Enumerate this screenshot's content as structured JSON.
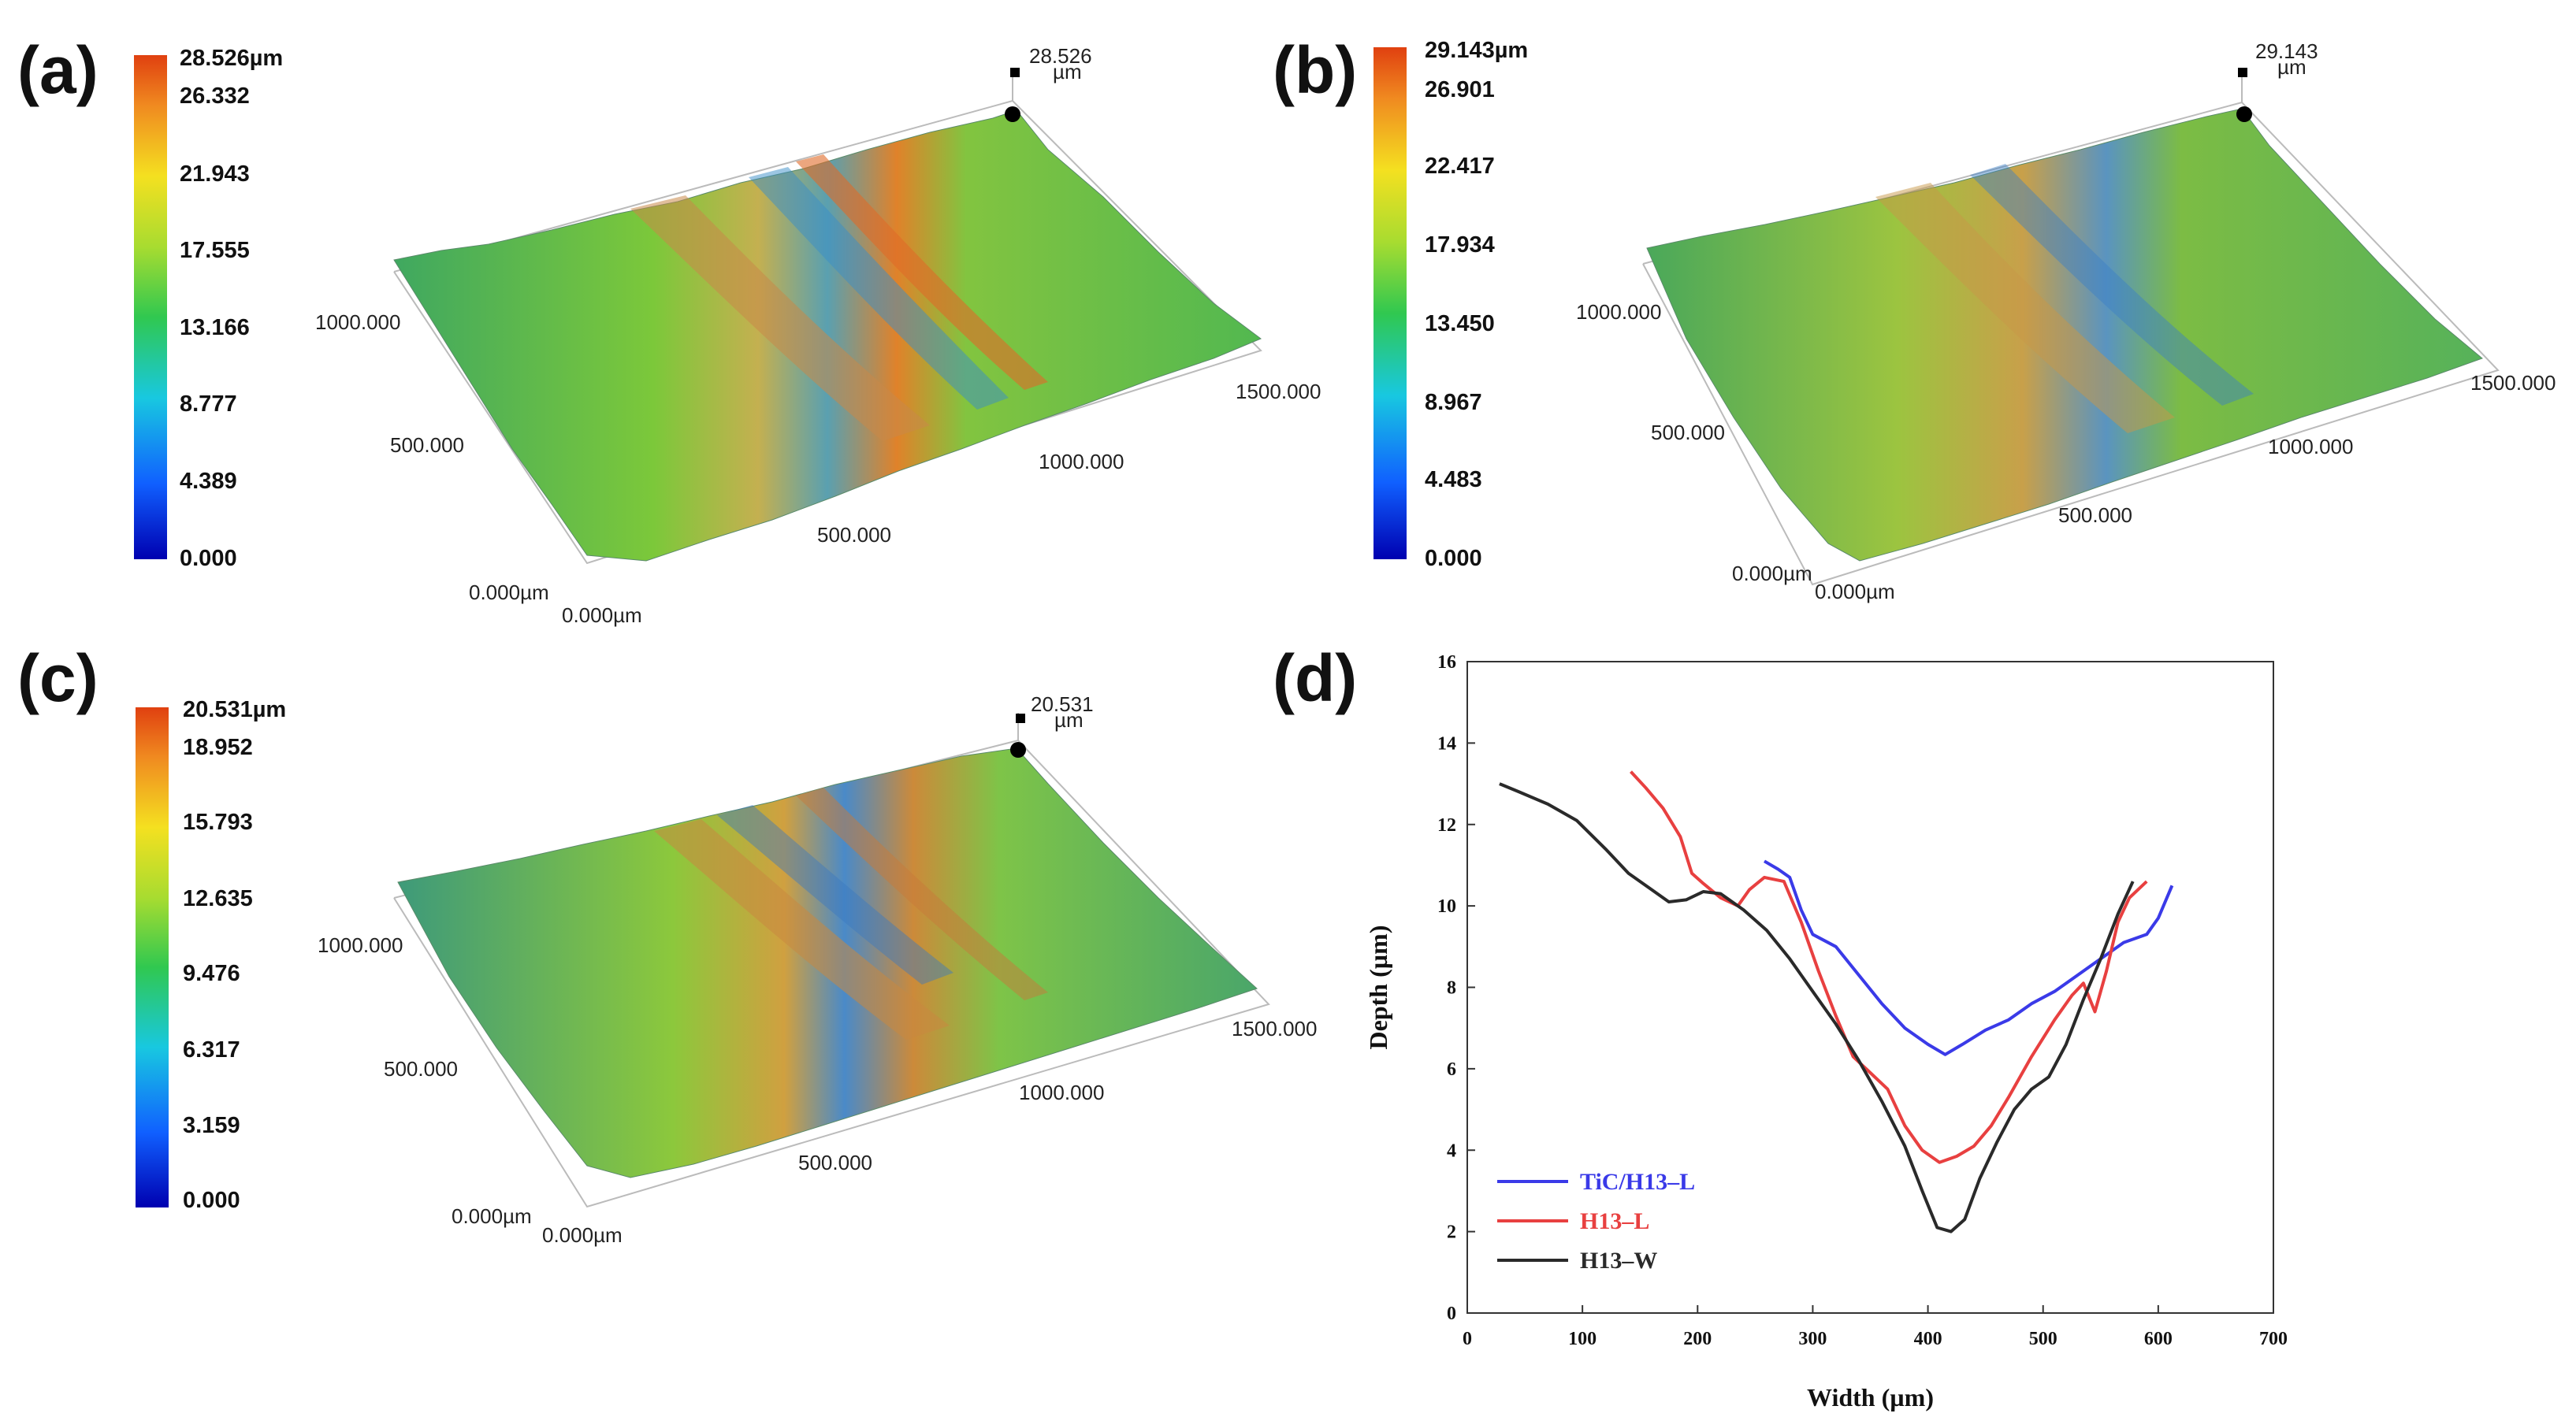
{
  "panels": {
    "a": {
      "label": "(a)",
      "colorbar": [
        "28.526µm",
        "26.332",
        "21.943",
        "17.555",
        "13.166",
        "8.777",
        "4.389",
        "0.000"
      ],
      "corner": {
        "value": "28.526",
        "unit": "µm"
      },
      "axes": {
        "y_top": "1000.000",
        "y_mid": "500.000",
        "origin_y": "0.000µm",
        "origin_x": "0.000µm",
        "x_mid": "500.000",
        "x_1000": "1000.000",
        "x_end": "1500.000"
      }
    },
    "b": {
      "label": "(b)",
      "colorbar": [
        "29.143µm",
        "26.901",
        "22.417",
        "17.934",
        "13.450",
        "8.967",
        "4.483",
        "0.000"
      ],
      "corner": {
        "value": "29.143",
        "unit": "µm"
      },
      "axes": {
        "y_top": "1000.000",
        "y_mid": "500.000",
        "origin_y": "0.000µm",
        "origin_x": "0.000µm",
        "x_mid": "500.000",
        "x_1000": "1000.000",
        "x_end": "1500.000"
      }
    },
    "c": {
      "label": "(c)",
      "colorbar": [
        "20.531µm",
        "18.952",
        "15.793",
        "12.635",
        "9.476",
        "6.317",
        "3.159",
        "0.000"
      ],
      "corner": {
        "value": "20.531",
        "unit": "µm"
      },
      "axes": {
        "y_top": "1000.000",
        "y_mid": "500.000",
        "origin_y": "0.000µm",
        "origin_x": "0.000µm",
        "x_mid": "500.000",
        "x_1000": "1000.000",
        "x_end": "1500.000"
      }
    },
    "d": {
      "label": "(d)"
    }
  },
  "chart_data": {
    "type": "line",
    "title": "",
    "xlabel": "Width (µm)",
    "ylabel": "Depth (µm)",
    "xlim": [
      0,
      700
    ],
    "ylim": [
      0,
      16
    ],
    "xticks": [
      0,
      100,
      200,
      300,
      400,
      500,
      600,
      700
    ],
    "yticks": [
      0,
      2,
      4,
      6,
      8,
      10,
      12,
      14,
      16
    ],
    "legend_position": "bottom-left",
    "series": [
      {
        "name": "TiC/H13–L",
        "color": "#3a3ae8",
        "points": [
          [
            258,
            11.1
          ],
          [
            270,
            10.9
          ],
          [
            280,
            10.7
          ],
          [
            290,
            9.9
          ],
          [
            300,
            9.3
          ],
          [
            320,
            9.0
          ],
          [
            340,
            8.3
          ],
          [
            360,
            7.6
          ],
          [
            380,
            7.0
          ],
          [
            400,
            6.6
          ],
          [
            415,
            6.35
          ],
          [
            430,
            6.6
          ],
          [
            450,
            6.95
          ],
          [
            470,
            7.2
          ],
          [
            490,
            7.6
          ],
          [
            510,
            7.9
          ],
          [
            530,
            8.3
          ],
          [
            550,
            8.7
          ],
          [
            570,
            9.1
          ],
          [
            590,
            9.3
          ],
          [
            600,
            9.7
          ],
          [
            612,
            10.5
          ]
        ]
      },
      {
        "name": "H13–L",
        "color": "#e84040",
        "points": [
          [
            142,
            13.3
          ],
          [
            155,
            12.9
          ],
          [
            170,
            12.4
          ],
          [
            185,
            11.7
          ],
          [
            195,
            10.8
          ],
          [
            205,
            10.55
          ],
          [
            220,
            10.2
          ],
          [
            235,
            10.0
          ],
          [
            245,
            10.4
          ],
          [
            258,
            10.7
          ],
          [
            275,
            10.6
          ],
          [
            290,
            9.6
          ],
          [
            305,
            8.4
          ],
          [
            320,
            7.3
          ],
          [
            335,
            6.3
          ],
          [
            350,
            5.9
          ],
          [
            365,
            5.5
          ],
          [
            380,
            4.6
          ],
          [
            395,
            4.0
          ],
          [
            410,
            3.7
          ],
          [
            425,
            3.85
          ],
          [
            440,
            4.1
          ],
          [
            455,
            4.6
          ],
          [
            470,
            5.3
          ],
          [
            490,
            6.3
          ],
          [
            510,
            7.2
          ],
          [
            525,
            7.8
          ],
          [
            535,
            8.1
          ],
          [
            545,
            7.4
          ],
          [
            555,
            8.4
          ],
          [
            565,
            9.6
          ],
          [
            575,
            10.2
          ],
          [
            590,
            10.6
          ]
        ]
      },
      {
        "name": "H13–W",
        "color": "#2a2a2a",
        "points": [
          [
            28,
            13.0
          ],
          [
            45,
            12.8
          ],
          [
            70,
            12.5
          ],
          [
            95,
            12.1
          ],
          [
            120,
            11.4
          ],
          [
            140,
            10.8
          ],
          [
            160,
            10.4
          ],
          [
            175,
            10.1
          ],
          [
            190,
            10.15
          ],
          [
            205,
            10.35
          ],
          [
            220,
            10.3
          ],
          [
            240,
            9.9
          ],
          [
            260,
            9.4
          ],
          [
            280,
            8.7
          ],
          [
            300,
            7.9
          ],
          [
            320,
            7.1
          ],
          [
            340,
            6.2
          ],
          [
            360,
            5.2
          ],
          [
            380,
            4.1
          ],
          [
            395,
            3.0
          ],
          [
            408,
            2.1
          ],
          [
            420,
            2.0
          ],
          [
            432,
            2.3
          ],
          [
            445,
            3.3
          ],
          [
            460,
            4.2
          ],
          [
            475,
            5.0
          ],
          [
            490,
            5.5
          ],
          [
            505,
            5.8
          ],
          [
            520,
            6.6
          ],
          [
            535,
            7.7
          ],
          [
            550,
            8.7
          ],
          [
            565,
            9.8
          ],
          [
            578,
            10.6
          ]
        ]
      }
    ]
  }
}
